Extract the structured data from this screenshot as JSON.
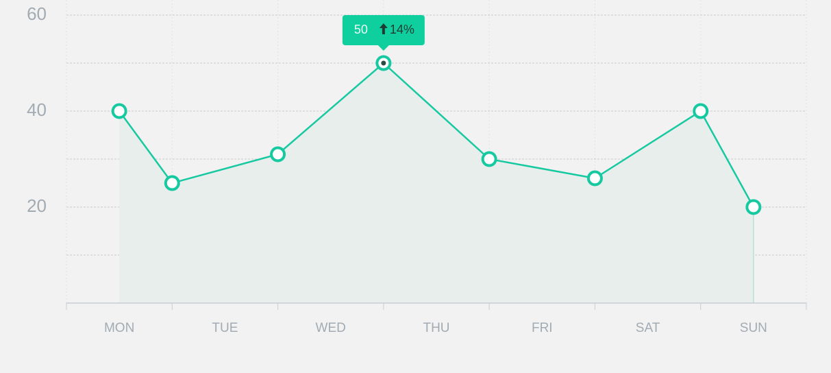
{
  "chart_data": {
    "type": "line",
    "categories": [
      "MON",
      "TUE",
      "WED",
      "THU",
      "FRI",
      "SAT",
      "SUN"
    ],
    "x": [
      0.5,
      1,
      2,
      3,
      4,
      5,
      6,
      6.5
    ],
    "values": [
      40,
      25,
      31,
      50,
      30,
      26,
      40,
      20
    ],
    "color": "#17c9a0",
    "area_color": "#e7eeec",
    "xlim": [
      0,
      7
    ],
    "xticks": [
      0,
      1,
      2,
      3,
      4,
      5,
      6,
      7
    ],
    "ylim": [
      0,
      60
    ],
    "yticks": [
      20,
      40,
      60
    ],
    "yticks_minor": [
      10,
      30,
      50
    ],
    "grid": true,
    "tooltip": {
      "point": 3,
      "change": "14%",
      "color": "#0fcf9f"
    }
  }
}
